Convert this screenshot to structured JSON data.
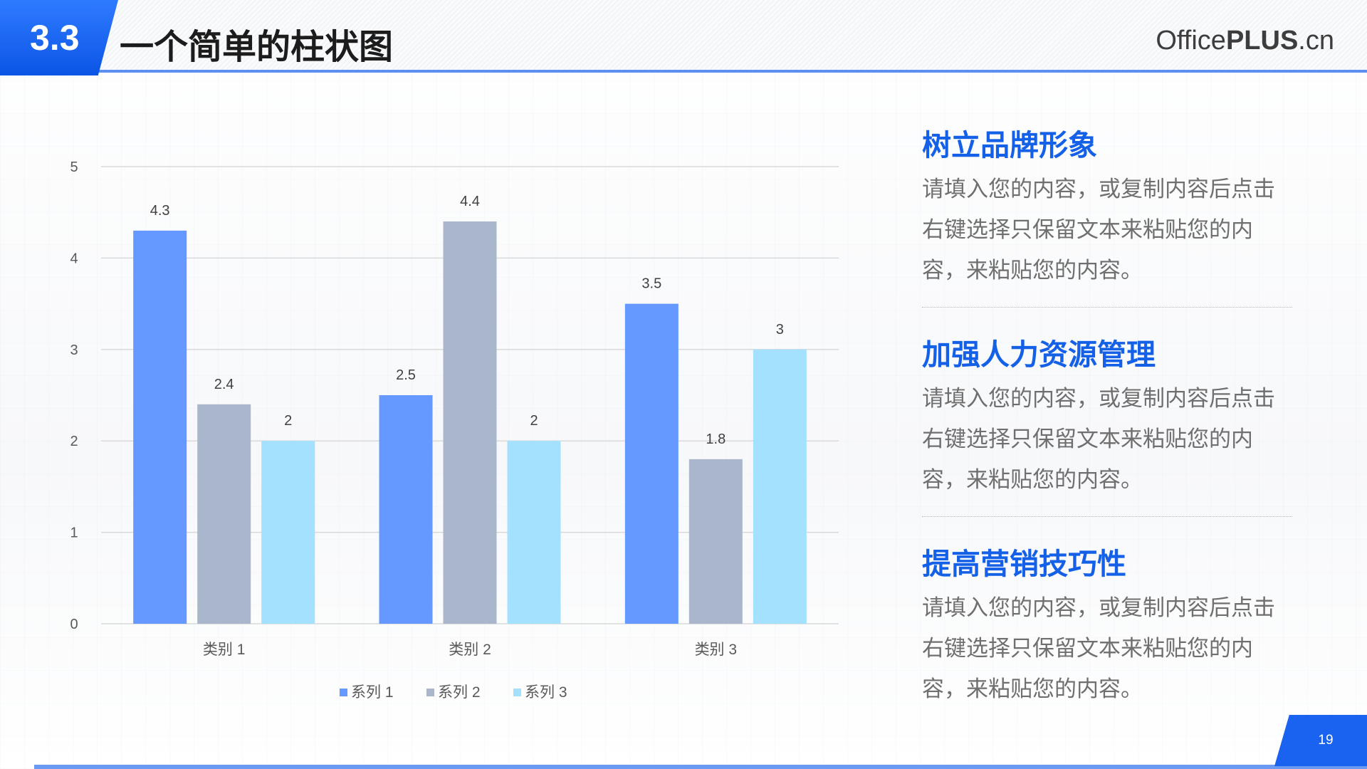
{
  "header": {
    "section_number": "3.3",
    "title": "一个简单的柱状图",
    "brand_light": "Office",
    "brand_bold": "PLUS",
    "brand_suffix": ".cn"
  },
  "points": [
    {
      "heading": "树立品牌形象",
      "body": "请填入您的内容，或复制内容后点击右键选择只保留文本来粘贴您的内容，来粘贴您的内容。"
    },
    {
      "heading": "加强人力资源管理",
      "body": "请填入您的内容，或复制内容后点击右键选择只保留文本来粘贴您的内容，来粘贴您的内容。"
    },
    {
      "heading": "提高营销技巧性",
      "body": "请填入您的内容，或复制内容后点击右键选择只保留文本来粘贴您的内容，来粘贴您的内容。"
    }
  ],
  "footer": {
    "page_number": "19"
  },
  "colors": {
    "accent": "#1461e8",
    "series1": "#6699ff",
    "series2": "#aab6cc",
    "series3": "#a3e1ff"
  },
  "chart_data": {
    "type": "bar",
    "categories": [
      "类别 1",
      "类别 2",
      "类别 3"
    ],
    "series": [
      {
        "name": "系列 1",
        "values": [
          4.3,
          2.5,
          3.5
        ]
      },
      {
        "name": "系列 2",
        "values": [
          2.4,
          4.4,
          1.8
        ]
      },
      {
        "name": "系列 3",
        "values": [
          2,
          2,
          3
        ]
      }
    ],
    "data_labels": [
      [
        "4.3",
        "2.5",
        "3.5"
      ],
      [
        "2.4",
        "4.4",
        "1.8"
      ],
      [
        "2",
        "2",
        "3"
      ]
    ],
    "ylim": [
      0,
      5
    ],
    "yticks": [
      "0",
      "1",
      "2",
      "3",
      "4",
      "5"
    ],
    "grid": true,
    "legend": "bottom"
  }
}
